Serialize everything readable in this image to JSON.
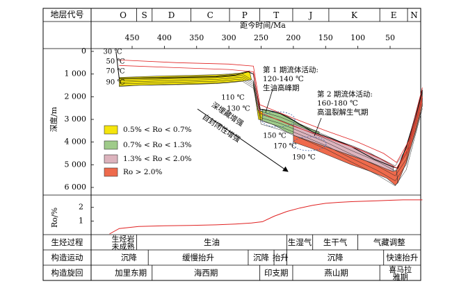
{
  "chart_data": {
    "type": "line",
    "title": "",
    "header_label": "地层代号",
    "strata": [
      {
        "code": "O",
        "from": 485,
        "to": 443
      },
      {
        "code": "S",
        "from": 443,
        "to": 419
      },
      {
        "code": "D",
        "from": 419,
        "to": 359
      },
      {
        "code": "C",
        "from": 359,
        "to": 299
      },
      {
        "code": "P",
        "from": 299,
        "to": 252
      },
      {
        "code": "T",
        "from": 252,
        "to": 201
      },
      {
        "code": "J",
        "from": 201,
        "to": 145
      },
      {
        "code": "K",
        "from": 145,
        "to": 66
      },
      {
        "code": "E",
        "from": 66,
        "to": 23
      },
      {
        "code": "N",
        "from": 23,
        "to": 0
      }
    ],
    "xlabel": "距今时间/Ma",
    "x_ticks": [
      450,
      400,
      350,
      300,
      250,
      200,
      150,
      100,
      50
    ],
    "xlim": [
      485,
      0
    ],
    "ylabel": "深度/m",
    "y_ticks": [
      0,
      1000,
      2000,
      3000,
      4000,
      5000,
      6000
    ],
    "y_tick_labels": [
      "0",
      "1 000",
      "2 000",
      "3 000",
      "4 000",
      "5 000",
      "6 000"
    ],
    "ylim": [
      0,
      6100
    ],
    "isotherms": [
      "30 ℃",
      "50 ℃",
      "70 ℃",
      "90 ℃",
      "110 ℃",
      "130 ℃",
      "150 ℃",
      "170 ℃",
      "190 ℃"
    ],
    "legend": [
      {
        "label": "0.5% < Ro < 0.7%",
        "color": "#f5e50c"
      },
      {
        "label": "0.7% < Ro < 1.3%",
        "color": "#9fcb8a"
      },
      {
        "label": "1.3% < Ro < 2.0%",
        "color": "#dcb3bd"
      },
      {
        "label": "Ro > 2.0%",
        "color": "#ee6a4c"
      }
    ],
    "annotations": {
      "phase1": [
        "第 1 期流体活动:",
        "120-140 ℃",
        "生油高峰期"
      ],
      "phase2": [
        "第 2 期流体活动:",
        "160-180 ℃",
        "高温裂解生气期"
      ],
      "arrow_a": "深埋藏增强",
      "arrow_b": "自封闭性增强"
    },
    "burial_curve": [
      {
        "x": 475,
        "y": 0
      },
      {
        "x": 470,
        "y": 1200
      },
      {
        "x": 440,
        "y": 1180
      },
      {
        "x": 400,
        "y": 1170
      },
      {
        "x": 360,
        "y": 1140
      },
      {
        "x": 320,
        "y": 1120
      },
      {
        "x": 290,
        "y": 1050
      },
      {
        "x": 270,
        "y": 900
      },
      {
        "x": 262,
        "y": 1000
      },
      {
        "x": 252,
        "y": 2550
      },
      {
        "x": 240,
        "y": 2600
      },
      {
        "x": 220,
        "y": 2750
      },
      {
        "x": 200,
        "y": 3050
      },
      {
        "x": 170,
        "y": 3550
      },
      {
        "x": 140,
        "y": 3850
      },
      {
        "x": 110,
        "y": 4200
      },
      {
        "x": 75,
        "y": 4750
      },
      {
        "x": 45,
        "y": 5100
      },
      {
        "x": 38,
        "y": 5150
      },
      {
        "x": 25,
        "y": 4200
      },
      {
        "x": 10,
        "y": 2800
      },
      {
        "x": 0,
        "y": 1700
      }
    ],
    "ro_panel": {
      "ylabel": "Ro/%",
      "y_ticks": [
        1,
        2
      ],
      "ylim": [
        0,
        2.7
      ],
      "x": [
        485,
        470,
        440,
        400,
        360,
        320,
        290,
        265,
        248,
        230,
        210,
        190,
        170,
        150,
        130,
        110,
        90,
        70,
        50,
        30,
        10,
        0
      ],
      "values": [
        0.05,
        0.45,
        0.6,
        0.65,
        0.68,
        0.72,
        0.78,
        0.85,
        0.95,
        1.35,
        1.7,
        1.95,
        2.15,
        2.3,
        2.37,
        2.42,
        2.45,
        2.48,
        2.52,
        2.55,
        2.55,
        2.55
      ]
    },
    "stage_rows": [
      {
        "label": "生烃过程",
        "cells": [
          {
            "text": "生烃岩未成熟",
            "from": 485,
            "to": 443
          },
          {
            "text": "生油",
            "from": 443,
            "to": 210
          },
          {
            "text": "生湿气",
            "from": 210,
            "to": 170
          },
          {
            "text": "生干气",
            "from": 170,
            "to": 100
          },
          {
            "text": "气藏调整",
            "from": 100,
            "to": 0
          }
        ]
      },
      {
        "label": "构造运动",
        "cells": [
          {
            "text": "沉降",
            "from": 485,
            "to": 425
          },
          {
            "text": "缓慢抬升",
            "from": 425,
            "to": 270
          },
          {
            "text": "沉降",
            "from": 270,
            "to": 230
          },
          {
            "text": "抬升",
            "from": 230,
            "to": 210
          },
          {
            "text": "沉降",
            "from": 210,
            "to": 60
          },
          {
            "text": "快速抬升",
            "from": 60,
            "to": 0
          }
        ]
      },
      {
        "label": "构造旋回",
        "cells": [
          {
            "text": "加里东期",
            "from": 485,
            "to": 419
          },
          {
            "text": "海西期",
            "from": 419,
            "to": 252
          },
          {
            "text": "印支期",
            "from": 252,
            "to": 201
          },
          {
            "text": "燕山期",
            "from": 201,
            "to": 66
          },
          {
            "text": "喜马拉雅期",
            "from": 66,
            "to": 0
          }
        ]
      }
    ]
  },
  "colors": {
    "yellow": "#f5e50c",
    "green": "#9fcb8a",
    "pink": "#dcb3bd",
    "red": "#ee6a4c",
    "curve": "#e02020",
    "axis": "#000000"
  }
}
